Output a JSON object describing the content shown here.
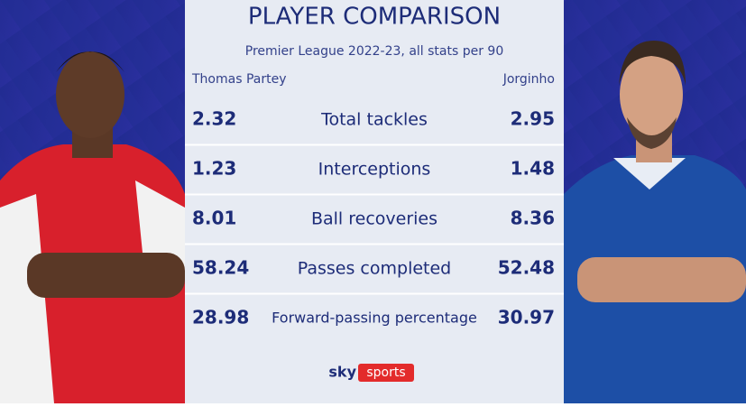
{
  "header": {
    "title": "PLAYER COMPARISON",
    "subtitle": "Premier League 2022-23, all stats per 90"
  },
  "players": {
    "left": "Thomas Partey",
    "right": "Jorginho"
  },
  "rows": [
    {
      "label": "Total tackles",
      "left": 2.32,
      "right": 2.95
    },
    {
      "label": "Interceptions",
      "left": 1.23,
      "right": 1.48
    },
    {
      "label": "Ball recoveries",
      "left": 8.01,
      "right": 8.36
    },
    {
      "label": "Passes completed",
      "left": 58.24,
      "right": 52.48
    },
    {
      "label": "Forward-passing percentage",
      "left": 28.98,
      "right": 30.97
    }
  ],
  "footer": {
    "logo_sky": "sky",
    "logo_sports": "sports"
  }
}
